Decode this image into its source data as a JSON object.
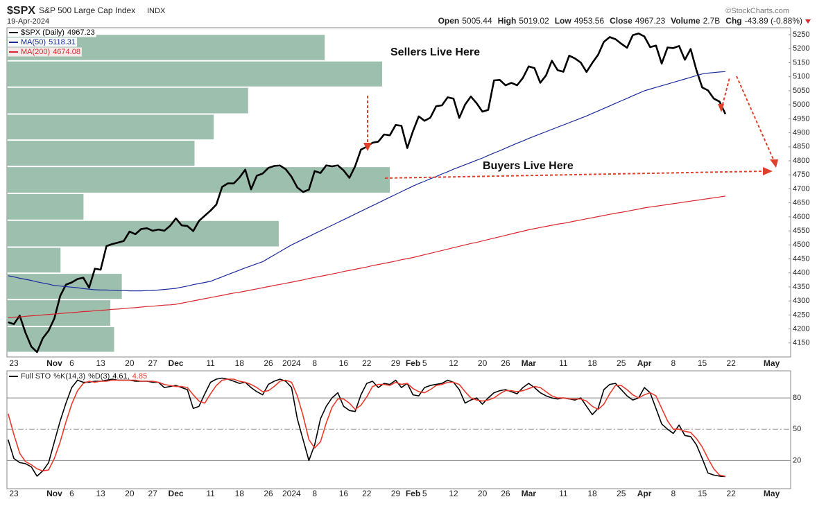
{
  "chart_data": [
    {
      "type": "line",
      "title": "$SPX",
      "subtitle": "S&P 500 Large Cap Index",
      "exchange": "INDX",
      "date": "19-Apr-2024",
      "source": "©StockCharts.com",
      "quote": [
        {
          "label": "Open",
          "value": "5005.44"
        },
        {
          "label": "High",
          "value": "5019.02"
        },
        {
          "label": "Low",
          "value": "4953.56"
        },
        {
          "label": "Close",
          "value": "4967.23"
        },
        {
          "label": "Volume",
          "value": "2.7B"
        },
        {
          "label": "Chg",
          "value": "-43.89 (-0.88%)"
        }
      ],
      "annotations": [
        "Sellers Live Here",
        "Buyers Live Here"
      ],
      "categories": [
        null,
        "23",
        null,
        null,
        null,
        null,
        null,
        null,
        "Nov",
        null,
        null,
        "6",
        null,
        null,
        null,
        null,
        "13",
        null,
        null,
        null,
        null,
        "20",
        null,
        null,
        null,
        "27",
        null,
        null,
        null,
        "Dec",
        null,
        null,
        null,
        null,
        null,
        "11",
        null,
        null,
        null,
        null,
        "18",
        null,
        null,
        null,
        null,
        "26",
        null,
        null,
        null,
        "2024",
        null,
        null,
        null,
        "8",
        null,
        null,
        null,
        null,
        "16",
        null,
        null,
        null,
        "22",
        null,
        null,
        null,
        null,
        "29",
        null,
        null,
        "Feb",
        null,
        "5",
        null,
        null,
        null,
        null,
        "12",
        null,
        null,
        null,
        null,
        "20",
        null,
        null,
        null,
        "26",
        null,
        null,
        null,
        "Mar",
        null,
        null,
        null,
        null,
        null,
        "11",
        null,
        null,
        null,
        null,
        "18",
        null,
        null,
        null,
        null,
        "25",
        null,
        null,
        null,
        "Apr",
        null,
        null,
        null,
        null,
        "8",
        null,
        null,
        null,
        null,
        "15",
        null,
        null,
        null,
        null,
        "22",
        null,
        null,
        null,
        null,
        null,
        null,
        "May"
      ],
      "series": [
        {
          "name": "$SPX (Daily)",
          "color": "#000000",
          "values": [
            4224.16,
            4217.04,
            4247.68,
            4186.77,
            4137.23,
            4117.37,
            4166.82,
            4193.8,
            4237.86,
            4317.78,
            4358.34,
            4365.98,
            4378.38,
            4382.78,
            4347.35,
            4415.24,
            4411.55,
            4495.7,
            4502.88,
            4508.24,
            4514.02,
            4547.38,
            4538.19,
            4556.62,
            4559.34,
            4550.43,
            4554.89,
            4550.58,
            4567.8,
            4594.63,
            4569.78,
            4567.18,
            4549.34,
            4585.59,
            4604.37,
            4622.44,
            4643.7,
            4707.09,
            4719.55,
            4719.19,
            4740.56,
            4768.37,
            4698.35,
            4746.75,
            4754.63,
            4774.75,
            4781.58,
            4783.35,
            4769.83,
            4742.83,
            4704.81,
            4688.68,
            4697.24,
            4763.54,
            4756.5,
            4783.45,
            4780.24,
            4783.83,
            4765.98,
            4739.21,
            4780.94,
            4839.81,
            4850.43,
            4864.6,
            4868.55,
            4894.16,
            4890.97,
            4927.93,
            4924.97,
            4845.65,
            4906.19,
            4958.61,
            4942.81,
            4954.23,
            4995.06,
            4997.91,
            5026.61,
            5021.84,
            4953.17,
            5000.62,
            5029.73,
            5005.57,
            4975.51,
            4981.8,
            5087.03,
            5088.8,
            5069.53,
            5078.18,
            5069.76,
            5096.27,
            5137.08,
            5130.95,
            5078.65,
            5104.76,
            5157.36,
            5123.69,
            5117.94,
            5175.27,
            5165.31,
            5150.48,
            5117.09,
            5149.42,
            5178.51,
            5224.62,
            5241.53,
            5234.18,
            5218.19,
            5203.58,
            5248.49,
            5254.35,
            5243.77,
            5205.81,
            5211.49,
            5147.21,
            5204.34,
            5202.39,
            5209.91,
            5160.64,
            5199.06,
            5123.41,
            5061.82,
            5051.41,
            5022.21,
            5011.12,
            4967.23,
            null,
            null,
            null,
            null,
            null,
            null,
            null,
            null
          ]
        },
        {
          "name": "MA(50)",
          "color": "#1a2a9c",
          "values": [
            4390,
            4386,
            4381,
            4377,
            4373,
            4368,
            4364,
            4360,
            4355,
            4353,
            4351,
            4349,
            4347,
            4344,
            4342,
            4340,
            4339,
            4339,
            4338,
            4337,
            4337,
            4336,
            4336,
            4336,
            4337,
            4337,
            4339,
            4341,
            4343,
            4345,
            4349,
            4353,
            4358,
            4362,
            4366,
            4370,
            4378,
            4386,
            4394,
            4402,
            4410,
            4418,
            4425,
            4433,
            4440,
            4452,
            4464,
            4476,
            4488,
            4500,
            4510,
            4520,
            4530,
            4540,
            4550,
            4560,
            4570,
            4580,
            4590,
            4600,
            4610,
            4620,
            4630,
            4640,
            4650,
            4660,
            4670,
            4680,
            4690,
            4700,
            4710,
            4719,
            4727,
            4736,
            4744,
            4753,
            4761,
            4770,
            4778,
            4786,
            4794,
            4802,
            4810,
            4819,
            4828,
            4836,
            4845,
            4854,
            4863,
            4871,
            4880,
            4888,
            4896,
            4904,
            4912,
            4920,
            4928,
            4936,
            4944,
            4952,
            4960,
            4969,
            4978,
            4987,
            4996,
            5005,
            5014,
            5023,
            5032,
            5041,
            5050,
            5056,
            5062,
            5068,
            5074,
            5080,
            5086,
            5092,
            5098,
            5104,
            5110,
            5113,
            5115,
            5117,
            5118.31,
            null,
            null,
            null,
            null,
            null,
            null,
            null,
            null
          ]
        },
        {
          "name": "MA(200)",
          "color": "#d9262e",
          "values": [
            4240,
            4242,
            4243,
            4245,
            4247,
            4248,
            4250,
            4252,
            4253,
            4255,
            4257,
            4258,
            4260,
            4262,
            4263,
            4265,
            4266,
            4268,
            4270,
            4271,
            4273,
            4275,
            4276,
            4278,
            4280,
            4281,
            4283,
            4285,
            4286,
            4288,
            4292,
            4296,
            4300,
            4304,
            4308,
            4312,
            4316,
            4320,
            4324,
            4328,
            4331,
            4335,
            4339,
            4343,
            4347,
            4351,
            4355,
            4359,
            4363,
            4367,
            4371,
            4375,
            4380,
            4384,
            4388,
            4392,
            4396,
            4400,
            4405,
            4409,
            4413,
            4417,
            4421,
            4426,
            4430,
            4434,
            4438,
            4442,
            4447,
            4451,
            4455,
            4460,
            4465,
            4470,
            4475,
            4480,
            4485,
            4490,
            4495,
            4500,
            4505,
            4509,
            4514,
            4519,
            4524,
            4529,
            4534,
            4539,
            4544,
            4549,
            4554,
            4558,
            4562,
            4566,
            4570,
            4574,
            4577,
            4581,
            4585,
            4589,
            4593,
            4597,
            4601,
            4605,
            4609,
            4613,
            4616,
            4620,
            4624,
            4628,
            4632,
            4635,
            4638,
            4641,
            4644,
            4647,
            4650,
            4653,
            4656,
            4659,
            4662,
            4665,
            4668,
            4671,
            4674.08,
            null,
            null,
            null,
            null,
            null,
            null,
            null,
            null
          ]
        }
      ],
      "ylim": [
        4100,
        5275
      ],
      "yticks": [
        4150,
        4200,
        4250,
        4300,
        4350,
        4400,
        4450,
        4500,
        4550,
        4600,
        4650,
        4700,
        4750,
        4800,
        4850,
        4900,
        4950,
        5000,
        5050,
        5100,
        5150,
        5200,
        5250
      ],
      "legend": "upper left",
      "volume_by_price": {
        "bins": [
          4116,
          4209,
          4305,
          4399,
          4492,
          4588,
          4684,
          4780,
          4874,
          4967,
          5063,
          5157,
          5252
        ],
        "values": [
          28,
          27,
          30,
          14,
          71,
          20,
          100,
          49,
          54,
          63,
          98,
          83
        ],
        "color": "#9dbfad"
      }
    },
    {
      "type": "line",
      "title": "Full STO",
      "categories": [
        null,
        "23",
        null,
        null,
        null,
        null,
        null,
        null,
        "Nov",
        null,
        null,
        "6",
        null,
        null,
        null,
        null,
        "13",
        null,
        null,
        null,
        null,
        "20",
        null,
        null,
        null,
        "27",
        null,
        null,
        null,
        "Dec",
        null,
        null,
        null,
        null,
        null,
        "11",
        null,
        null,
        null,
        null,
        "18",
        null,
        null,
        null,
        null,
        "26",
        null,
        null,
        null,
        "2024",
        null,
        null,
        null,
        "8",
        null,
        null,
        null,
        null,
        "16",
        null,
        null,
        null,
        "22",
        null,
        null,
        null,
        null,
        "29",
        null,
        null,
        "Feb",
        null,
        "5",
        null,
        null,
        null,
        null,
        "12",
        null,
        null,
        null,
        null,
        "20",
        null,
        null,
        null,
        "26",
        null,
        null,
        null,
        "Mar",
        null,
        null,
        null,
        null,
        null,
        "11",
        null,
        null,
        null,
        null,
        "18",
        null,
        null,
        null,
        null,
        "25",
        null,
        null,
        null,
        "Apr",
        null,
        null,
        null,
        null,
        "8",
        null,
        null,
        null,
        null,
        "15",
        null,
        null,
        null,
        null,
        "22",
        null,
        null,
        null,
        null,
        null,
        null,
        "May"
      ],
      "series": [
        {
          "name": "%K(14,3)",
          "color": "#000000",
          "values": [
            40,
            22,
            18,
            17,
            14,
            5,
            10,
            18,
            38,
            58,
            75,
            90,
            97,
            95,
            95,
            96,
            96,
            97,
            98,
            97,
            97,
            97,
            96,
            96,
            96,
            95,
            95,
            90,
            91,
            92,
            90,
            88,
            70,
            72,
            84,
            95,
            98,
            99,
            98,
            96,
            94,
            95,
            90,
            86,
            83,
            93,
            96,
            98,
            96,
            90,
            60,
            40,
            20,
            35,
            60,
            72,
            80,
            85,
            72,
            68,
            67,
            83,
            94,
            96,
            90,
            94,
            93,
            97,
            90,
            94,
            83,
            82,
            90,
            92,
            93,
            94,
            97,
            95,
            88,
            75,
            78,
            80,
            74,
            80,
            85,
            87,
            88,
            86,
            84,
            90,
            94,
            90,
            85,
            82,
            80,
            79,
            80,
            79,
            78,
            80,
            72,
            64,
            70,
            88,
            93,
            94,
            88,
            82,
            78,
            80,
            90,
            85,
            70,
            55,
            50,
            46,
            54,
            44,
            43,
            35,
            22,
            8,
            6,
            5,
            4.61,
            null,
            null,
            null,
            null,
            null,
            null,
            null,
            null
          ]
        },
        {
          "name": "%D(3)",
          "color": "#e8392b",
          "values": [
            65,
            45,
            27,
            19,
            16,
            12,
            10,
            11,
            22,
            38,
            57,
            74,
            87,
            94,
            96,
            95,
            96,
            96,
            97,
            97,
            97,
            97,
            97,
            96,
            96,
            96,
            95,
            93,
            92,
            91,
            91,
            90,
            83,
            77,
            75,
            84,
            92,
            97,
            98,
            98,
            96,
            95,
            93,
            90,
            86,
            87,
            91,
            96,
            97,
            95,
            82,
            63,
            40,
            32,
            38,
            56,
            71,
            79,
            79,
            75,
            69,
            73,
            81,
            91,
            93,
            93,
            92,
            95,
            93,
            94,
            89,
            86,
            85,
            88,
            92,
            93,
            95,
            95,
            93,
            86,
            80,
            78,
            77,
            78,
            80,
            84,
            87,
            87,
            86,
            87,
            89,
            91,
            90,
            86,
            82,
            80,
            80,
            79,
            79,
            79,
            77,
            72,
            69,
            74,
            84,
            92,
            92,
            88,
            83,
            80,
            83,
            85,
            82,
            70,
            58,
            50,
            50,
            48,
            47,
            41,
            33,
            22,
            12,
            6,
            4.85,
            null,
            null,
            null,
            null,
            null,
            null,
            null,
            null
          ]
        }
      ],
      "legend_separator": ",",
      "ylim": [
        -7,
        106
      ],
      "yticks": [
        20,
        50,
        80
      ],
      "grid": true,
      "legend": "upper left"
    }
  ]
}
